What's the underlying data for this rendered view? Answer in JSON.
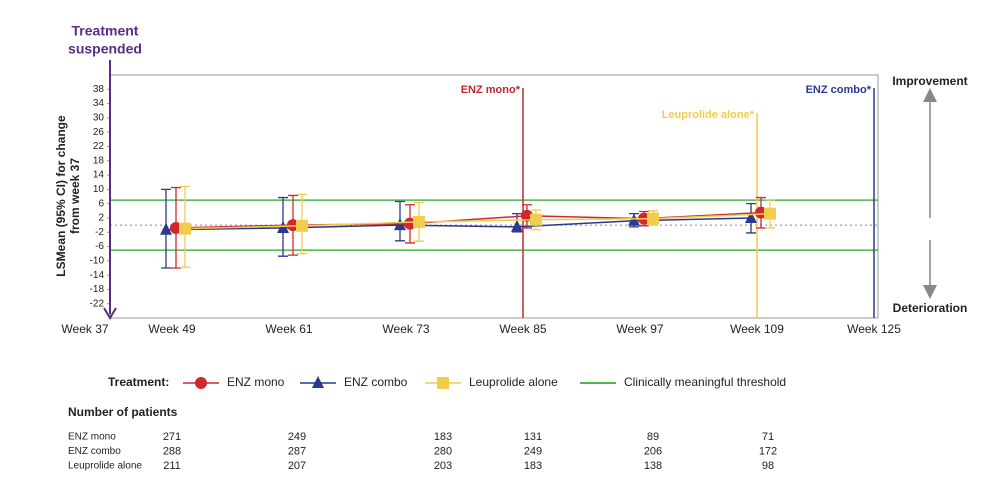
{
  "chart_data": {
    "type": "line",
    "y_label_lines": [
      "LSMean (95% CI) for change",
      "from week 37"
    ],
    "categories": [
      "Week 37",
      "Week 49",
      "Week 61",
      "Week 73",
      "Week 85",
      "Week 97",
      "Week 109",
      "Week 125"
    ],
    "ylim": [
      -26,
      42
    ],
    "yticks": [
      -22,
      -18,
      -14,
      -10,
      -6,
      -2,
      2,
      6,
      10,
      14,
      18,
      22,
      26,
      30,
      34,
      38
    ],
    "series": [
      {
        "name": "ENZ combo",
        "color": "#2b3a8f",
        "marker": "triangle",
        "values": [
          null,
          -1.3,
          -0.8,
          0,
          -0.5,
          1.2,
          2,
          null
        ],
        "lower": [
          null,
          -12,
          -8.7,
          -4.4,
          -1.9,
          -0.5,
          -2.2,
          null
        ],
        "upper": [
          null,
          10,
          7.7,
          6.6,
          3.2,
          3.2,
          6,
          null
        ]
      },
      {
        "name": "ENZ mono",
        "color": "#d0282e",
        "marker": "circle",
        "values": [
          null,
          -0.8,
          0,
          0.4,
          2.6,
          1.8,
          3.5,
          null
        ],
        "lower": [
          null,
          -12,
          -8.4,
          -5,
          -0.8,
          -0.2,
          -0.8,
          null
        ],
        "upper": [
          null,
          10.5,
          8.3,
          5.7,
          5.7,
          3.8,
          7.7,
          null
        ]
      },
      {
        "name": "Leuprolide alone",
        "color": "#f2cc4b",
        "marker": "square",
        "values": [
          null,
          -1,
          -0.2,
          0.9,
          1.5,
          1.8,
          3.2,
          null
        ],
        "lower": [
          null,
          -11.8,
          -8,
          -4.5,
          -1.3,
          0,
          -0.8,
          null
        ],
        "upper": [
          null,
          10.8,
          8.6,
          6.3,
          4.2,
          4,
          7.1,
          null
        ]
      }
    ],
    "threshold": {
      "name": "Clinically meaningful threshold",
      "color": "#4cb848",
      "values": [
        7,
        -7
      ]
    },
    "event_lines": [
      {
        "label": "ENZ mono*",
        "x": "Week 85",
        "color": "#c0282e"
      },
      {
        "label": "Leuprolide alone*",
        "x": "Week 109",
        "color": "#f2cc4b"
      },
      {
        "label": "ENZ combo*",
        "x": "Week 125",
        "color": "#2b3a8f"
      }
    ],
    "suspension": {
      "label_lines": [
        "Treatment",
        "suspended"
      ],
      "x": "Week 37",
      "color": "#5b2c83"
    },
    "direction_labels": {
      "up": "Improvement",
      "down": "Deterioration"
    },
    "legend_title": "Treatment:",
    "table": {
      "title": "Number of patients",
      "rows": [
        [
          "ENZ mono",
          271,
          249,
          183,
          131,
          89,
          71
        ],
        [
          "ENZ combo",
          288,
          287,
          280,
          249,
          206,
          172
        ],
        [
          "Leuprolide alone",
          211,
          207,
          203,
          183,
          138,
          98
        ]
      ]
    }
  }
}
